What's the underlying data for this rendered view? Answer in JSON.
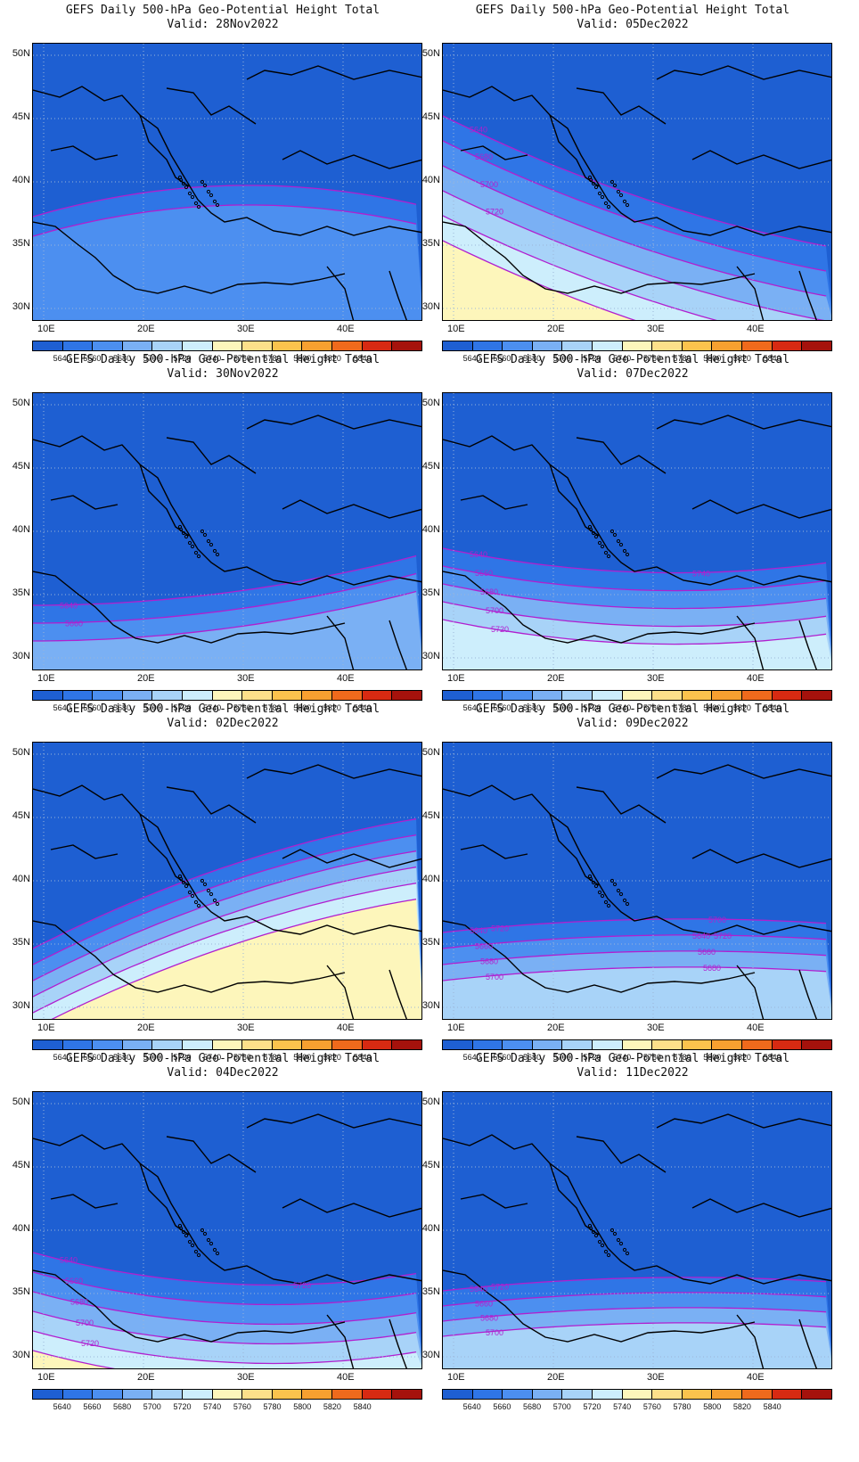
{
  "panels": [
    {
      "title": "GEFS Daily 500-hPa Geo-Potential Height Total",
      "valid": "Valid: 28Nov2022",
      "contour_labels": []
    },
    {
      "title": "GEFS Daily 500-hPa Geo-Potential Height Total",
      "valid": "Valid: 05Dec2022",
      "contour_labels": [
        "5640",
        "5680",
        "5700",
        "5720"
      ]
    },
    {
      "title": "GEFS Daily 500-hPa Geo-Potential Height Total",
      "valid": "Valid: 30Nov2022",
      "contour_labels": [
        "5640",
        "5660"
      ]
    },
    {
      "title": "GEFS Daily 500-hPa Geo-Potential Height Total",
      "valid": "Valid: 07Dec2022",
      "contour_labels": [
        "5640",
        "5660",
        "5680",
        "5700",
        "5720",
        "5740"
      ]
    },
    {
      "title": "GEFS Daily 500-hPa Geo-Potential Height Total",
      "valid": "Valid: 02Dec2022",
      "contour_labels": []
    },
    {
      "title": "GEFS Daily 500-hPa Geo-Potential Height Total",
      "valid": "Valid: 09Dec2022",
      "contour_labels": [
        "5640",
        "5660",
        "5680",
        "5700",
        "5720",
        "5640",
        "5660",
        "5680",
        "5700",
        "5720"
      ]
    },
    {
      "title": "GEFS Daily 500-hPa Geo-Potential Height Total",
      "valid": "Valid: 04Dec2022",
      "contour_labels": [
        "5640",
        "5660",
        "5680",
        "5700",
        "5720",
        "5740",
        "5760",
        "5720"
      ]
    },
    {
      "title": "GEFS Daily 500-hPa Geo-Potential Height Total",
      "valid": "Valid: 11Dec2022",
      "contour_labels": [
        "5640",
        "5660",
        "5680",
        "5700",
        "5720"
      ]
    }
  ],
  "axes": {
    "lat_labels": [
      "50N",
      "45N",
      "40N",
      "35N",
      "30N"
    ],
    "lon_labels": [
      "10E",
      "20E",
      "30E",
      "40E"
    ]
  },
  "colorbar": {
    "labels": [
      "5640",
      "5660",
      "5680",
      "5700",
      "5720",
      "5740",
      "5760",
      "5780",
      "5800",
      "5820",
      "5840"
    ],
    "colors": [
      "#1e5fd2",
      "#2f75e6",
      "#4c8ff0",
      "#7ab0f4",
      "#a8d3f8",
      "#cdeefc",
      "#fdf6bb",
      "#fde08a",
      "#fbc34d",
      "#f7a030",
      "#ef6a1c",
      "#d72a12",
      "#a5120c"
    ]
  },
  "style": {
    "contour_color": "#b11fcf",
    "land_line": "#000000"
  }
}
